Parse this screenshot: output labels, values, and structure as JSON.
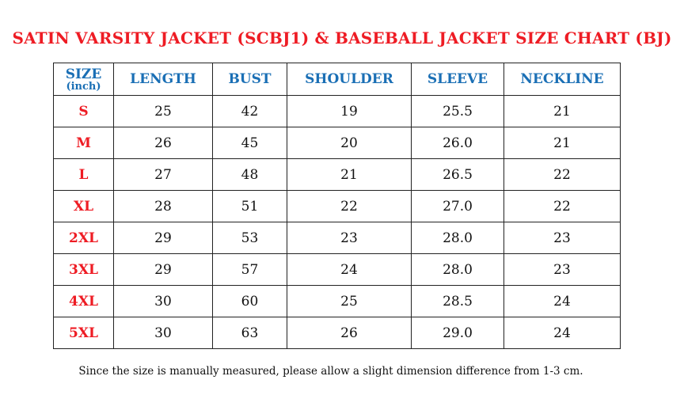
{
  "title": "SATIN VARSITY JACKET (SCBJ1) & BASEBALL JACKET SIZE CHART (BJ)",
  "headers": {
    "size": "SIZE",
    "unit": "(inch)",
    "cols": [
      "LENGTH",
      "BUST",
      "SHOULDER",
      "SLEEVE",
      "NECKLINE"
    ]
  },
  "rows": [
    {
      "size": "S",
      "values": [
        "25",
        "42",
        "19",
        "25.5",
        "21"
      ]
    },
    {
      "size": "M",
      "values": [
        "26",
        "45",
        "20",
        "26.0",
        "21"
      ]
    },
    {
      "size": "L",
      "values": [
        "27",
        "48",
        "21",
        "26.5",
        "22"
      ]
    },
    {
      "size": "XL",
      "values": [
        "28",
        "51",
        "22",
        "27.0",
        "22"
      ]
    },
    {
      "size": "2XL",
      "values": [
        "29",
        "53",
        "23",
        "28.0",
        "23"
      ]
    },
    {
      "size": "3XL",
      "values": [
        "29",
        "57",
        "24",
        "28.0",
        "23"
      ]
    },
    {
      "size": "4XL",
      "values": [
        "30",
        "60",
        "25",
        "28.5",
        "24"
      ]
    },
    {
      "size": "5XL",
      "values": [
        "30",
        "63",
        "26",
        "29.0",
        "24"
      ]
    }
  ],
  "note": "Since the size is manually measured, please allow a slight dimension difference from 1-3 cm."
}
